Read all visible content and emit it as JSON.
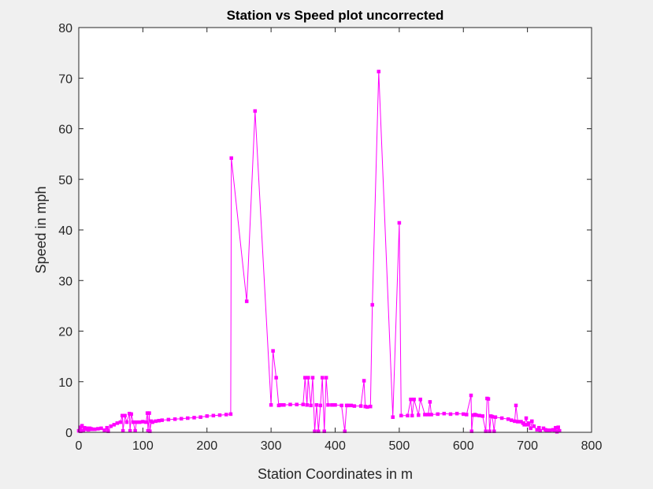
{
  "chart_data": {
    "type": "line",
    "title": "Station vs Speed plot uncorrected",
    "xlabel": "Station Coordinates in m",
    "ylabel": "Speed in mph",
    "xlim": [
      0,
      800
    ],
    "ylim": [
      0,
      80
    ],
    "xticks": [
      "0",
      "100",
      "200",
      "300",
      "400",
      "500",
      "600",
      "700",
      "800"
    ],
    "yticks": [
      "0",
      "10",
      "20",
      "30",
      "40",
      "50",
      "60",
      "70",
      "80"
    ],
    "grid": false,
    "legend": "none",
    "colors": {
      "series": "#ff00ff",
      "background": "#f0f0f0",
      "axes_bg": "#ffffff",
      "axis": "#262626"
    },
    "series": [
      {
        "marker": "square",
        "x": [
          0,
          2,
          3,
          5,
          7,
          9,
          10,
          12,
          14,
          15,
          17,
          19,
          20,
          25,
          30,
          35,
          40,
          44,
          46,
          50,
          55,
          60,
          65,
          68,
          69,
          72,
          75,
          79,
          80,
          82,
          85,
          88,
          90,
          95,
          100,
          105,
          107,
          108,
          110,
          111,
          113,
          115,
          120,
          125,
          130,
          140,
          150,
          160,
          170,
          180,
          190,
          200,
          210,
          220,
          230,
          237,
          238,
          262,
          275,
          300,
          303,
          308,
          312,
          315,
          320,
          330,
          340,
          350,
          353,
          356,
          358,
          362,
          365,
          368,
          371,
          374,
          377,
          380,
          383,
          386,
          389,
          395,
          400,
          410,
          415,
          418,
          420,
          425,
          430,
          440,
          445,
          447,
          450,
          455,
          458,
          468,
          490,
          500,
          503,
          513,
          518,
          520,
          523,
          530,
          533,
          540,
          545,
          548,
          550,
          560,
          570,
          580,
          590,
          600,
          605,
          612,
          613,
          615,
          618,
          620,
          625,
          630,
          635,
          637,
          639,
          641,
          643,
          645,
          648,
          650,
          660,
          670,
          675,
          680,
          682,
          685,
          690,
          693,
          695,
          698,
          700,
          702,
          705,
          707,
          710,
          715,
          718,
          720,
          725,
          728,
          730,
          735,
          740,
          742,
          744,
          746,
          748,
          750
        ],
        "y": [
          0.3,
          1.0,
          0.2,
          1.3,
          0.3,
          0.9,
          0.6,
          0.8,
          0.7,
          0.5,
          0.8,
          0.7,
          0.6,
          0.6,
          0.7,
          0.8,
          0.4,
          0.9,
          0.2,
          1.2,
          1.5,
          1.8,
          2.0,
          3.3,
          0.3,
          3.3,
          2.0,
          3.7,
          0.3,
          3.6,
          2.0,
          0.3,
          2.0,
          2.0,
          2.1,
          2.0,
          3.8,
          0.3,
          3.8,
          0.2,
          2.2,
          2.0,
          2.2,
          2.3,
          2.4,
          2.5,
          2.6,
          2.7,
          2.8,
          2.9,
          3.0,
          3.2,
          3.3,
          3.4,
          3.5,
          3.6,
          54.2,
          25.9,
          63.5,
          5.4,
          16.1,
          10.8,
          5.3,
          5.4,
          5.4,
          5.5,
          5.5,
          5.5,
          10.8,
          5.4,
          10.8,
          5.3,
          10.8,
          0.2,
          5.4,
          0.2,
          5.3,
          10.8,
          0.2,
          10.8,
          5.4,
          5.4,
          5.4,
          5.3,
          0.2,
          5.3,
          5.3,
          5.3,
          5.2,
          5.2,
          10.2,
          5.1,
          5.0,
          5.1,
          25.2,
          71.3,
          3.0,
          41.4,
          3.3,
          3.3,
          6.5,
          3.3,
          6.5,
          3.4,
          6.5,
          3.5,
          3.5,
          6.0,
          3.5,
          3.6,
          3.7,
          3.6,
          3.7,
          3.6,
          3.5,
          7.3,
          0.2,
          3.4,
          3.5,
          3.4,
          3.3,
          3.2,
          0.2,
          6.7,
          6.6,
          0.2,
          3.2,
          3.1,
          0.2,
          3.0,
          2.8,
          2.6,
          2.4,
          2.2,
          5.3,
          2.1,
          2.1,
          1.8,
          1.5,
          2.8,
          1.5,
          1.8,
          0.8,
          2.2,
          1.2,
          0.5,
          0.9,
          0.3,
          0.8,
          0.5,
          0.4,
          0.4,
          0.5,
          0.4,
          0.9,
          0.1,
          1.0,
          0.3
        ]
      }
    ]
  }
}
